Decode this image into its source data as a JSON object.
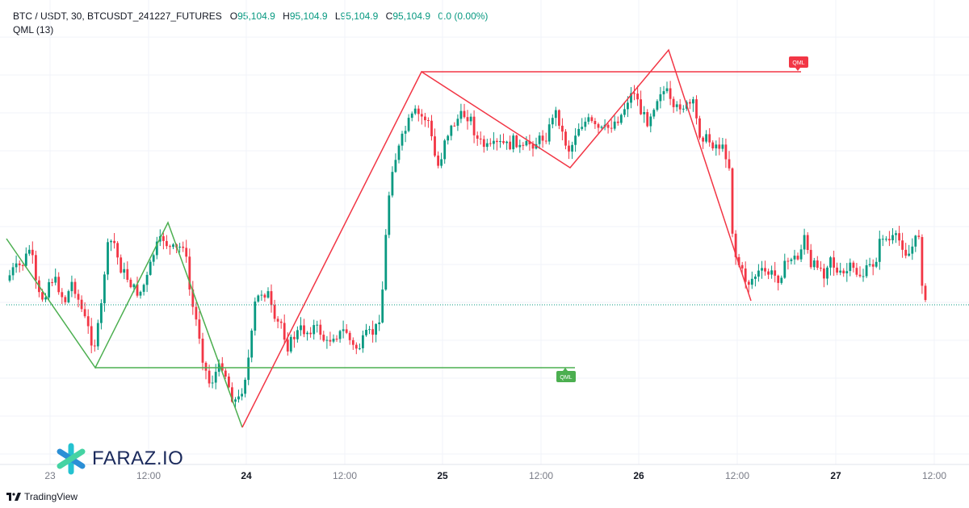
{
  "legend": {
    "symbol": "BTC / USDT, 30, BTCUSDT_241227_FUTURES",
    "open_label": "O",
    "open": "95,104.9",
    "high_label": "H",
    "high": "95,104.9",
    "low_label": "L",
    "low": "95,104.9",
    "close_label": "C",
    "close": "95,104.9",
    "change": "0.0 (0.00%)",
    "indicator": "QML (13)"
  },
  "brand": {
    "logo_text": "FARAZ.IO",
    "footer": "TradingView"
  },
  "colors": {
    "up": "#089981",
    "down": "#f23645",
    "bull_pattern": "#4caf50",
    "bear_pattern": "#f23645",
    "grid": "#f0f3fa"
  },
  "chart_data": {
    "type": "candlestick",
    "x_ticks": [
      {
        "label": "23",
        "bold": false
      },
      {
        "label": "12:00",
        "bold": false
      },
      {
        "label": "24",
        "bold": true
      },
      {
        "label": "12:00",
        "bold": false
      },
      {
        "label": "25",
        "bold": true
      },
      {
        "label": "12:00",
        "bold": false
      },
      {
        "label": "26",
        "bold": true
      },
      {
        "label": "12:00",
        "bold": false
      },
      {
        "label": "27",
        "bold": true
      },
      {
        "label": "12:00",
        "bold": false
      }
    ],
    "last_price": "95,104.9",
    "annotations": [
      {
        "label": "QML",
        "pattern": "bearish"
      },
      {
        "label": "QML",
        "pattern": "bullish"
      }
    ]
  }
}
